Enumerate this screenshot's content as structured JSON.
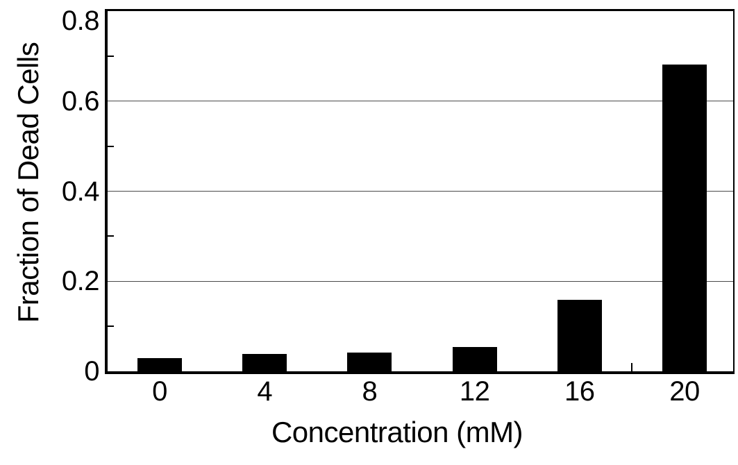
{
  "chart_data": {
    "type": "bar",
    "title": "",
    "xlabel": "Concentration (mM)",
    "ylabel": "Fraction of Dead Cells",
    "categories": [
      "0",
      "4",
      "8",
      "12",
      "16",
      "20"
    ],
    "values": [
      0.03,
      0.038,
      0.042,
      0.054,
      0.158,
      0.681
    ],
    "ylim": [
      0,
      0.8
    ],
    "yticks": [
      0,
      0.2,
      0.4,
      0.6,
      0.8
    ],
    "ytick_labels": [
      "0",
      "0.2",
      "0.4",
      "0.6",
      "0.8"
    ],
    "minor_yticks": [
      0.1,
      0.3,
      0.5,
      0.7
    ],
    "gridlines_at": [
      0.2,
      0.4,
      0.6
    ],
    "grid": "horizontal-major-only",
    "legend": "none",
    "stray_xtick_between": [
      "16",
      "20"
    ],
    "bar_color": "#000000",
    "axis_color": "#000000",
    "gridline_color": "#4a4a4a",
    "background_color": "#ffffff"
  }
}
